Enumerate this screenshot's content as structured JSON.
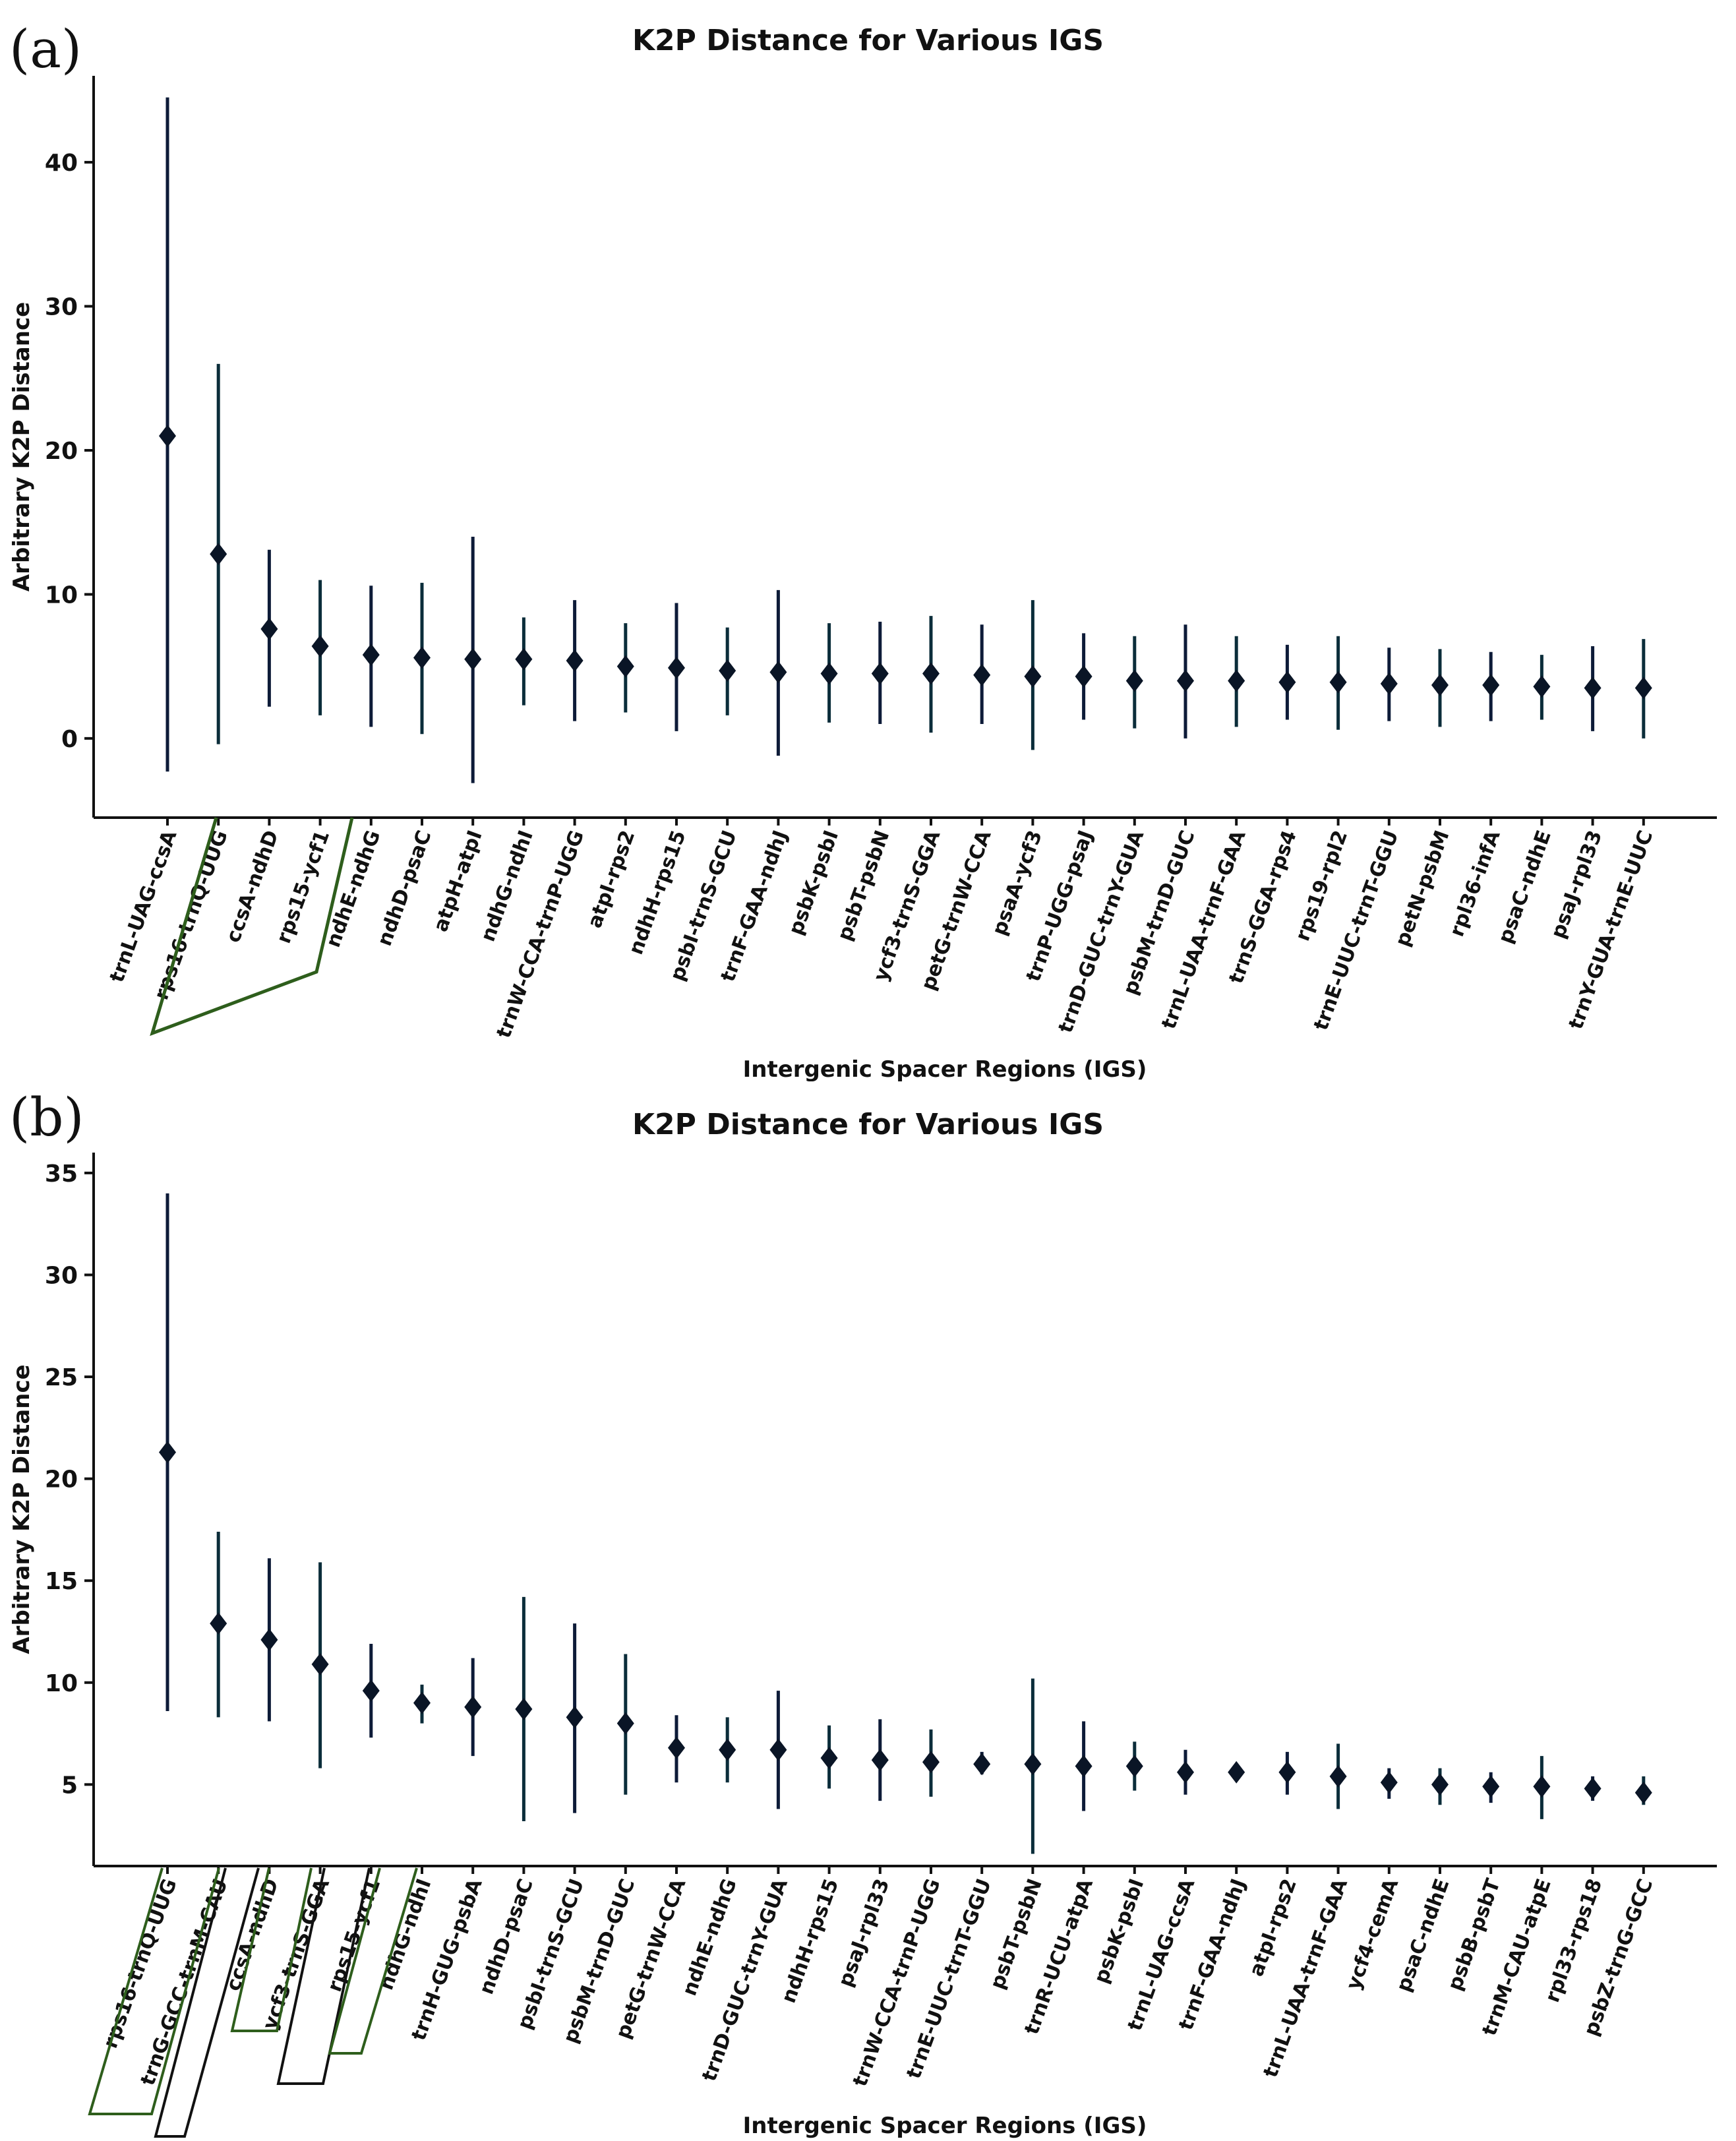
{
  "chart_data": [
    {
      "type": "scatter",
      "panel_label": "(a)",
      "title": "K2P Distance for Various IGS",
      "xlabel": "Intergenic Spacer Regions (IGS)",
      "ylabel": "Arbitrary K2P Distance",
      "ylim": [
        -5.5,
        46
      ],
      "yticks": [
        0,
        10,
        20,
        30,
        40
      ],
      "marker": "diamond",
      "categories": [
        "trnL-UAG-ccsA",
        "rps16-trnQ-UUG",
        "ccsA-ndhD",
        "rps15-ycf1",
        "ndhE-ndhG",
        "ndhD-psaC",
        "atpH-atpI",
        "ndhG-ndhI",
        "trnW-CCA-trnP-UGG",
        "atpI-rps2",
        "ndhH-rps15",
        "psbI-trnS-GCU",
        "trnF-GAA-ndhJ",
        "psbK-psbI",
        "psbT-psbN",
        "ycf3-trnS-GGA",
        "petG-trnW-CCA",
        "psaA-ycf3",
        "trnP-UGG-psaJ",
        "trnD-GUC-trnY-GUA",
        "psbM-trnD-GUC",
        "trnL-UAA-trnF-GAA",
        "trnS-GGA-rps4",
        "rps19-rpl2",
        "trnE-UUC-trnT-GGU",
        "petN-psbM",
        "rpl36-infA",
        "psaC-ndhE",
        "psaJ-rpl33",
        "trnY-GUA-trnE-UUC"
      ],
      "values": [
        21.0,
        12.8,
        7.6,
        6.4,
        5.8,
        5.6,
        5.5,
        5.5,
        5.4,
        5.0,
        4.9,
        4.7,
        4.6,
        4.5,
        4.5,
        4.5,
        4.4,
        4.3,
        4.3,
        4.0,
        4.0,
        4.0,
        3.9,
        3.9,
        3.8,
        3.7,
        3.7,
        3.6,
        3.5,
        3.5
      ],
      "lower": [
        -2.3,
        -0.4,
        2.2,
        1.6,
        0.8,
        0.3,
        -3.1,
        2.3,
        1.2,
        1.8,
        0.5,
        1.6,
        -1.2,
        1.1,
        1.0,
        0.4,
        1.0,
        -0.8,
        1.3,
        0.7,
        0.0,
        0.8,
        1.3,
        0.6,
        1.2,
        0.8,
        1.2,
        1.3,
        0.5,
        0.0
      ],
      "upper": [
        44.5,
        26.0,
        13.1,
        11.0,
        10.6,
        10.8,
        14.0,
        8.4,
        9.6,
        8.0,
        9.4,
        7.7,
        10.3,
        8.0,
        8.1,
        8.5,
        7.9,
        9.6,
        7.3,
        7.1,
        7.9,
        7.1,
        6.5,
        7.1,
        6.3,
        6.2,
        6.0,
        5.8,
        6.4,
        6.9
      ],
      "highlight_groups": [
        {
          "from": 0,
          "to": 3
        }
      ]
    },
    {
      "type": "scatter",
      "panel_label": "(b)",
      "title": "K2P Distance for Various IGS",
      "xlabel": "Intergenic Spacer Regions (IGS)",
      "ylabel": "Arbitrary K2P Distance",
      "ylim": [
        1,
        36
      ],
      "yticks": [
        5,
        10,
        15,
        20,
        25,
        30,
        35
      ],
      "marker": "diamond",
      "categories": [
        "rps16-trnQ-UUG",
        "trnG-GCC-trnM-CAU",
        "ccsA-ndhD",
        "ycf3-trnS-GGA",
        "rps15-ycf1",
        "ndhG-ndhI",
        "trnH-GUG-psbA",
        "ndhD-psaC",
        "psbI-trnS-GCU",
        "psbM-trnD-GUC",
        "petG-trnW-CCA",
        "ndhE-ndhG",
        "trnD-GUC-trnY-GUA",
        "ndhH-rps15",
        "psaJ-rpl33",
        "trnW-CCA-trnP-UGG",
        "trnE-UUC-trnT-GGU",
        "psbT-psbN",
        "trnR-UCU-atpA",
        "psbK-psbI",
        "trnL-UAG-ccsA",
        "trnF-GAA-ndhJ",
        "atpI-rps2",
        "trnL-UAA-trnF-GAA",
        "ycf4-cemA",
        "psaC-ndhE",
        "psbB-psbT",
        "trnM-CAU-atpE",
        "rpl33-rps18",
        "psbZ-trnG-GCC"
      ],
      "values": [
        21.3,
        12.9,
        12.1,
        10.9,
        9.6,
        9.0,
        8.8,
        8.7,
        8.3,
        8.0,
        6.8,
        6.7,
        6.7,
        6.3,
        6.2,
        6.1,
        6.0,
        6.0,
        5.9,
        5.9,
        5.6,
        5.6,
        5.6,
        5.4,
        5.1,
        5.0,
        4.9,
        4.9,
        4.8,
        4.6
      ],
      "lower": [
        8.6,
        8.3,
        8.1,
        5.8,
        7.3,
        8.0,
        6.4,
        3.2,
        3.6,
        4.5,
        5.1,
        5.1,
        3.8,
        4.8,
        4.2,
        4.4,
        5.5,
        1.6,
        3.7,
        4.7,
        4.5,
        5.4,
        4.5,
        3.8,
        4.3,
        4.0,
        4.1,
        3.3,
        4.2,
        4.0
      ],
      "upper": [
        34.0,
        17.4,
        16.1,
        15.9,
        11.9,
        9.9,
        11.2,
        14.2,
        12.9,
        11.4,
        8.4,
        8.3,
        9.6,
        7.9,
        8.2,
        7.7,
        6.6,
        10.2,
        8.1,
        7.1,
        6.7,
        5.8,
        6.6,
        7.0,
        5.8,
        5.8,
        5.6,
        6.4,
        5.4,
        5.4
      ],
      "highlight_groups": [
        {
          "from": 0,
          "to": 0
        },
        {
          "from": 1,
          "to": 1
        },
        {
          "from": 2,
          "to": 2
        },
        {
          "from": 3,
          "to": 3
        },
        {
          "from": 4,
          "to": 4
        }
      ]
    }
  ]
}
